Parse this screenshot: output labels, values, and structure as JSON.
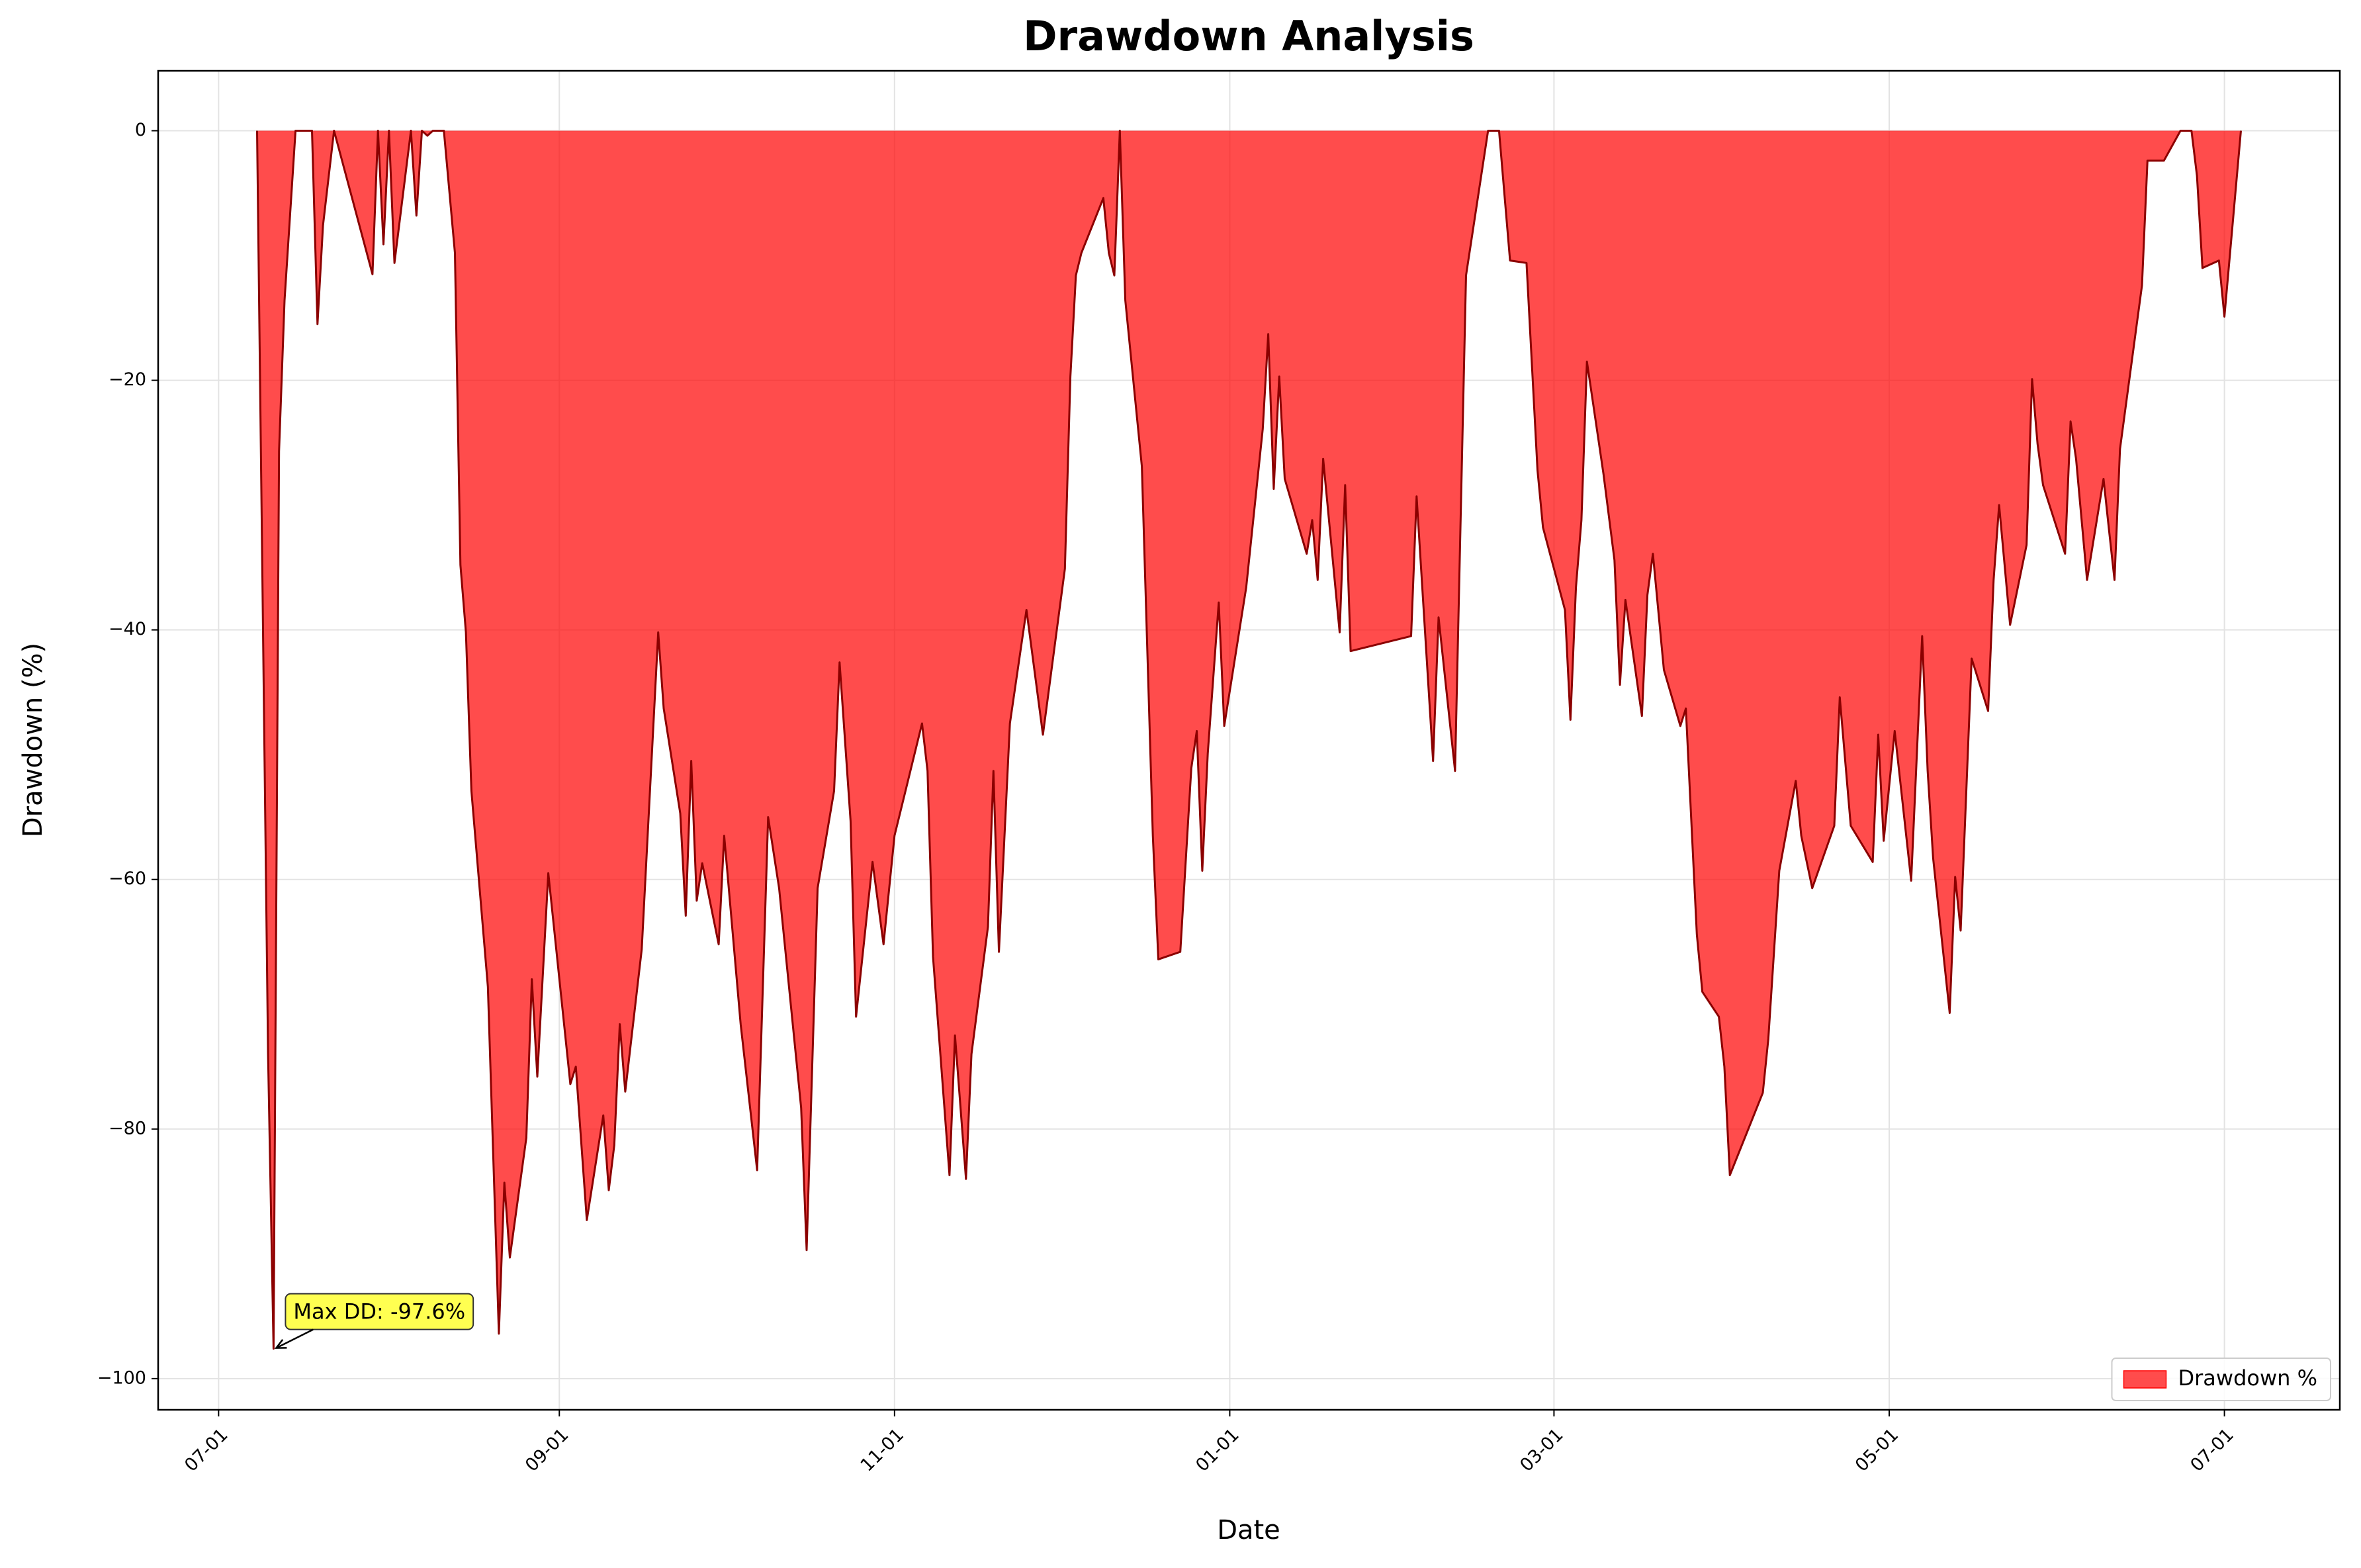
{
  "chart_data": {
    "type": "area",
    "title": "Drawdown Analysis",
    "x_label": "Date",
    "y_label": "Drawdown (%)",
    "x": [
      "07-08",
      "07-10",
      "07-11",
      "07-12",
      "07-13",
      "07-15",
      "07-18",
      "07-19",
      "07-20",
      "07-22",
      "07-29",
      "07-30",
      "07-31",
      "08-01",
      "08-02",
      "08-05",
      "08-06",
      "08-07",
      "08-08",
      "08-09",
      "08-11",
      "08-13",
      "08-14",
      "08-15",
      "08-16",
      "08-19",
      "08-21",
      "08-22",
      "08-23",
      "08-26",
      "08-27",
      "08-28",
      "08-30",
      "09-03",
      "09-04",
      "09-06",
      "09-09",
      "09-10",
      "09-11",
      "09-12",
      "09-13",
      "09-16",
      "09-19",
      "09-20",
      "09-23",
      "09-24",
      "09-25",
      "09-26",
      "09-27",
      "09-30",
      "10-01",
      "10-04",
      "10-07",
      "10-09",
      "10-11",
      "10-15",
      "10-16",
      "10-18",
      "10-21",
      "10-22",
      "10-24",
      "10-25",
      "10-28",
      "10-30",
      "11-01",
      "11-06",
      "11-07",
      "11-08",
      "11-11",
      "11-12",
      "11-14",
      "11-15",
      "11-18",
      "11-19",
      "11-20",
      "11-22",
      "11-25",
      "11-28",
      "12-02",
      "12-03",
      "12-04",
      "12-05",
      "12-09",
      "12-10",
      "12-11",
      "12-12",
      "12-13",
      "12-16",
      "12-18",
      "12-19",
      "12-23",
      "12-25",
      "12-26",
      "12-27",
      "12-28",
      "12-30",
      "12-31",
      "01-04",
      "01-07",
      "01-08",
      "01-09",
      "01-10",
      "01-11",
      "01-15",
      "01-16",
      "01-17",
      "01-18",
      "01-21",
      "01-22",
      "01-23",
      "02-03",
      "02-04",
      "02-07",
      "02-08",
      "02-11",
      "02-13",
      "02-17",
      "02-19",
      "02-21",
      "02-24",
      "02-26",
      "02-27",
      "03-03",
      "03-04",
      "03-05",
      "03-06",
      "03-07",
      "03-10",
      "03-12",
      "03-13",
      "03-14",
      "03-17",
      "03-18",
      "03-19",
      "03-21",
      "03-24",
      "03-25",
      "03-27",
      "03-28",
      "03-31",
      "04-01",
      "04-02",
      "04-08",
      "04-09",
      "04-11",
      "04-14",
      "04-15",
      "04-17",
      "04-21",
      "04-22",
      "04-24",
      "04-28",
      "04-29",
      "04-30",
      "05-02",
      "05-05",
      "05-07",
      "05-08",
      "05-09",
      "05-12",
      "05-13",
      "05-14",
      "05-16",
      "05-19",
      "05-20",
      "05-21",
      "05-23",
      "05-26",
      "05-27",
      "05-28",
      "05-29",
      "06-02",
      "06-03",
      "06-04",
      "06-06",
      "06-09",
      "06-10",
      "06-11",
      "06-12",
      "06-16",
      "06-17",
      "06-20",
      "06-23",
      "06-25",
      "06-26",
      "06-27",
      "06-30",
      "07-01",
      "07-04"
    ],
    "series": [
      {
        "name": "Drawdown %",
        "color": "#ff0000",
        "alpha": 0.7,
        "line_color": "#8b0000",
        "values": [
          0,
          -74,
          -97.6,
          -25.7,
          -13.6,
          0,
          0,
          -15.5,
          -7.6,
          0,
          -11.5,
          0,
          -9.1,
          0,
          -10.6,
          0,
          -6.8,
          0,
          -0.4,
          0,
          0,
          -9.8,
          -34.8,
          -40.2,
          -52.9,
          -68.6,
          -96.4,
          -84.3,
          -90.3,
          -80.7,
          -68,
          -75.8,
          -59.5,
          -76.4,
          -75,
          -87.3,
          -78.9,
          -84.9,
          -81.3,
          -71.6,
          -77,
          -65.6,
          -40.2,
          -46.3,
          -54.7,
          -62.9,
          -50.5,
          -61.7,
          -58.7,
          -65.2,
          -56.5,
          -71.6,
          -83.3,
          -55,
          -60.7,
          -78.3,
          -89.7,
          -60.7,
          -52.9,
          -42.6,
          -55.3,
          -71,
          -58.6,
          -65.2,
          -56.5,
          -47.5,
          -51.3,
          -66.2,
          -83.7,
          -72.5,
          -84,
          -74,
          -63.8,
          -51.3,
          -65.8,
          -47.5,
          -38.4,
          -48.4,
          -35.1,
          -19.7,
          -11.6,
          -9.8,
          -5.4,
          -9.8,
          -11.6,
          0,
          -13.6,
          -26.9,
          -56.5,
          -66.4,
          -65.8,
          -51.1,
          -48.1,
          -59.3,
          -49.9,
          -37.8,
          -47.7,
          -36.6,
          -23.9,
          -16.3,
          -28.7,
          -19.7,
          -27.9,
          -33.9,
          -31.2,
          -36,
          -26.3,
          -40.2,
          -28.4,
          -41.7,
          -40.5,
          -29.3,
          -50.5,
          -39,
          -51.3,
          -11.6,
          0,
          0,
          -10.4,
          -10.6,
          -27.2,
          -31.8,
          -38.4,
          -47.2,
          -36.6,
          -31.2,
          -18.5,
          -27.5,
          -34.4,
          -44.4,
          -37.6,
          -46.9,
          -37.2,
          -33.9,
          -43.2,
          -47.7,
          -46.3,
          -64.4,
          -69,
          -71,
          -75,
          -83.7,
          -77.1,
          -72.8,
          -59.3,
          -52.1,
          -56.5,
          -60.7,
          -55.7,
          -45.4,
          -55.7,
          -58.6,
          -48.4,
          -56.9,
          -48.1,
          -60.1,
          -40.5,
          -51.3,
          -58.3,
          -70.7,
          -59.8,
          -64.1,
          -42.3,
          -46.5,
          -36,
          -30,
          -39.6,
          -33.2,
          -19.9,
          -25.1,
          -28.4,
          -33.9,
          -23.3,
          -26.3,
          -36,
          -27.9,
          -32,
          -36,
          -25.5,
          -12.4,
          -2.4,
          -2.4,
          0,
          0,
          -3.6,
          -11,
          -10.4,
          -14.9,
          0
        ]
      }
    ],
    "annotation": "Max DD: -97.6%",
    "xlim": [
      "06-20",
      "07-22"
    ],
    "xticks": [
      "07-01",
      "09-01",
      "11-01",
      "01-01",
      "03-01",
      "05-01",
      "07-01"
    ],
    "ylim": [
      -102.5,
      4.8
    ],
    "yticks": [
      {
        "value": -100,
        "label": "−100"
      },
      {
        "value": -80,
        "label": "−80"
      },
      {
        "value": -60,
        "label": "−60"
      },
      {
        "value": -40,
        "label": "−40"
      },
      {
        "value": -20,
        "label": "−20"
      },
      0
    ],
    "grid": true,
    "legend": "lower right"
  }
}
